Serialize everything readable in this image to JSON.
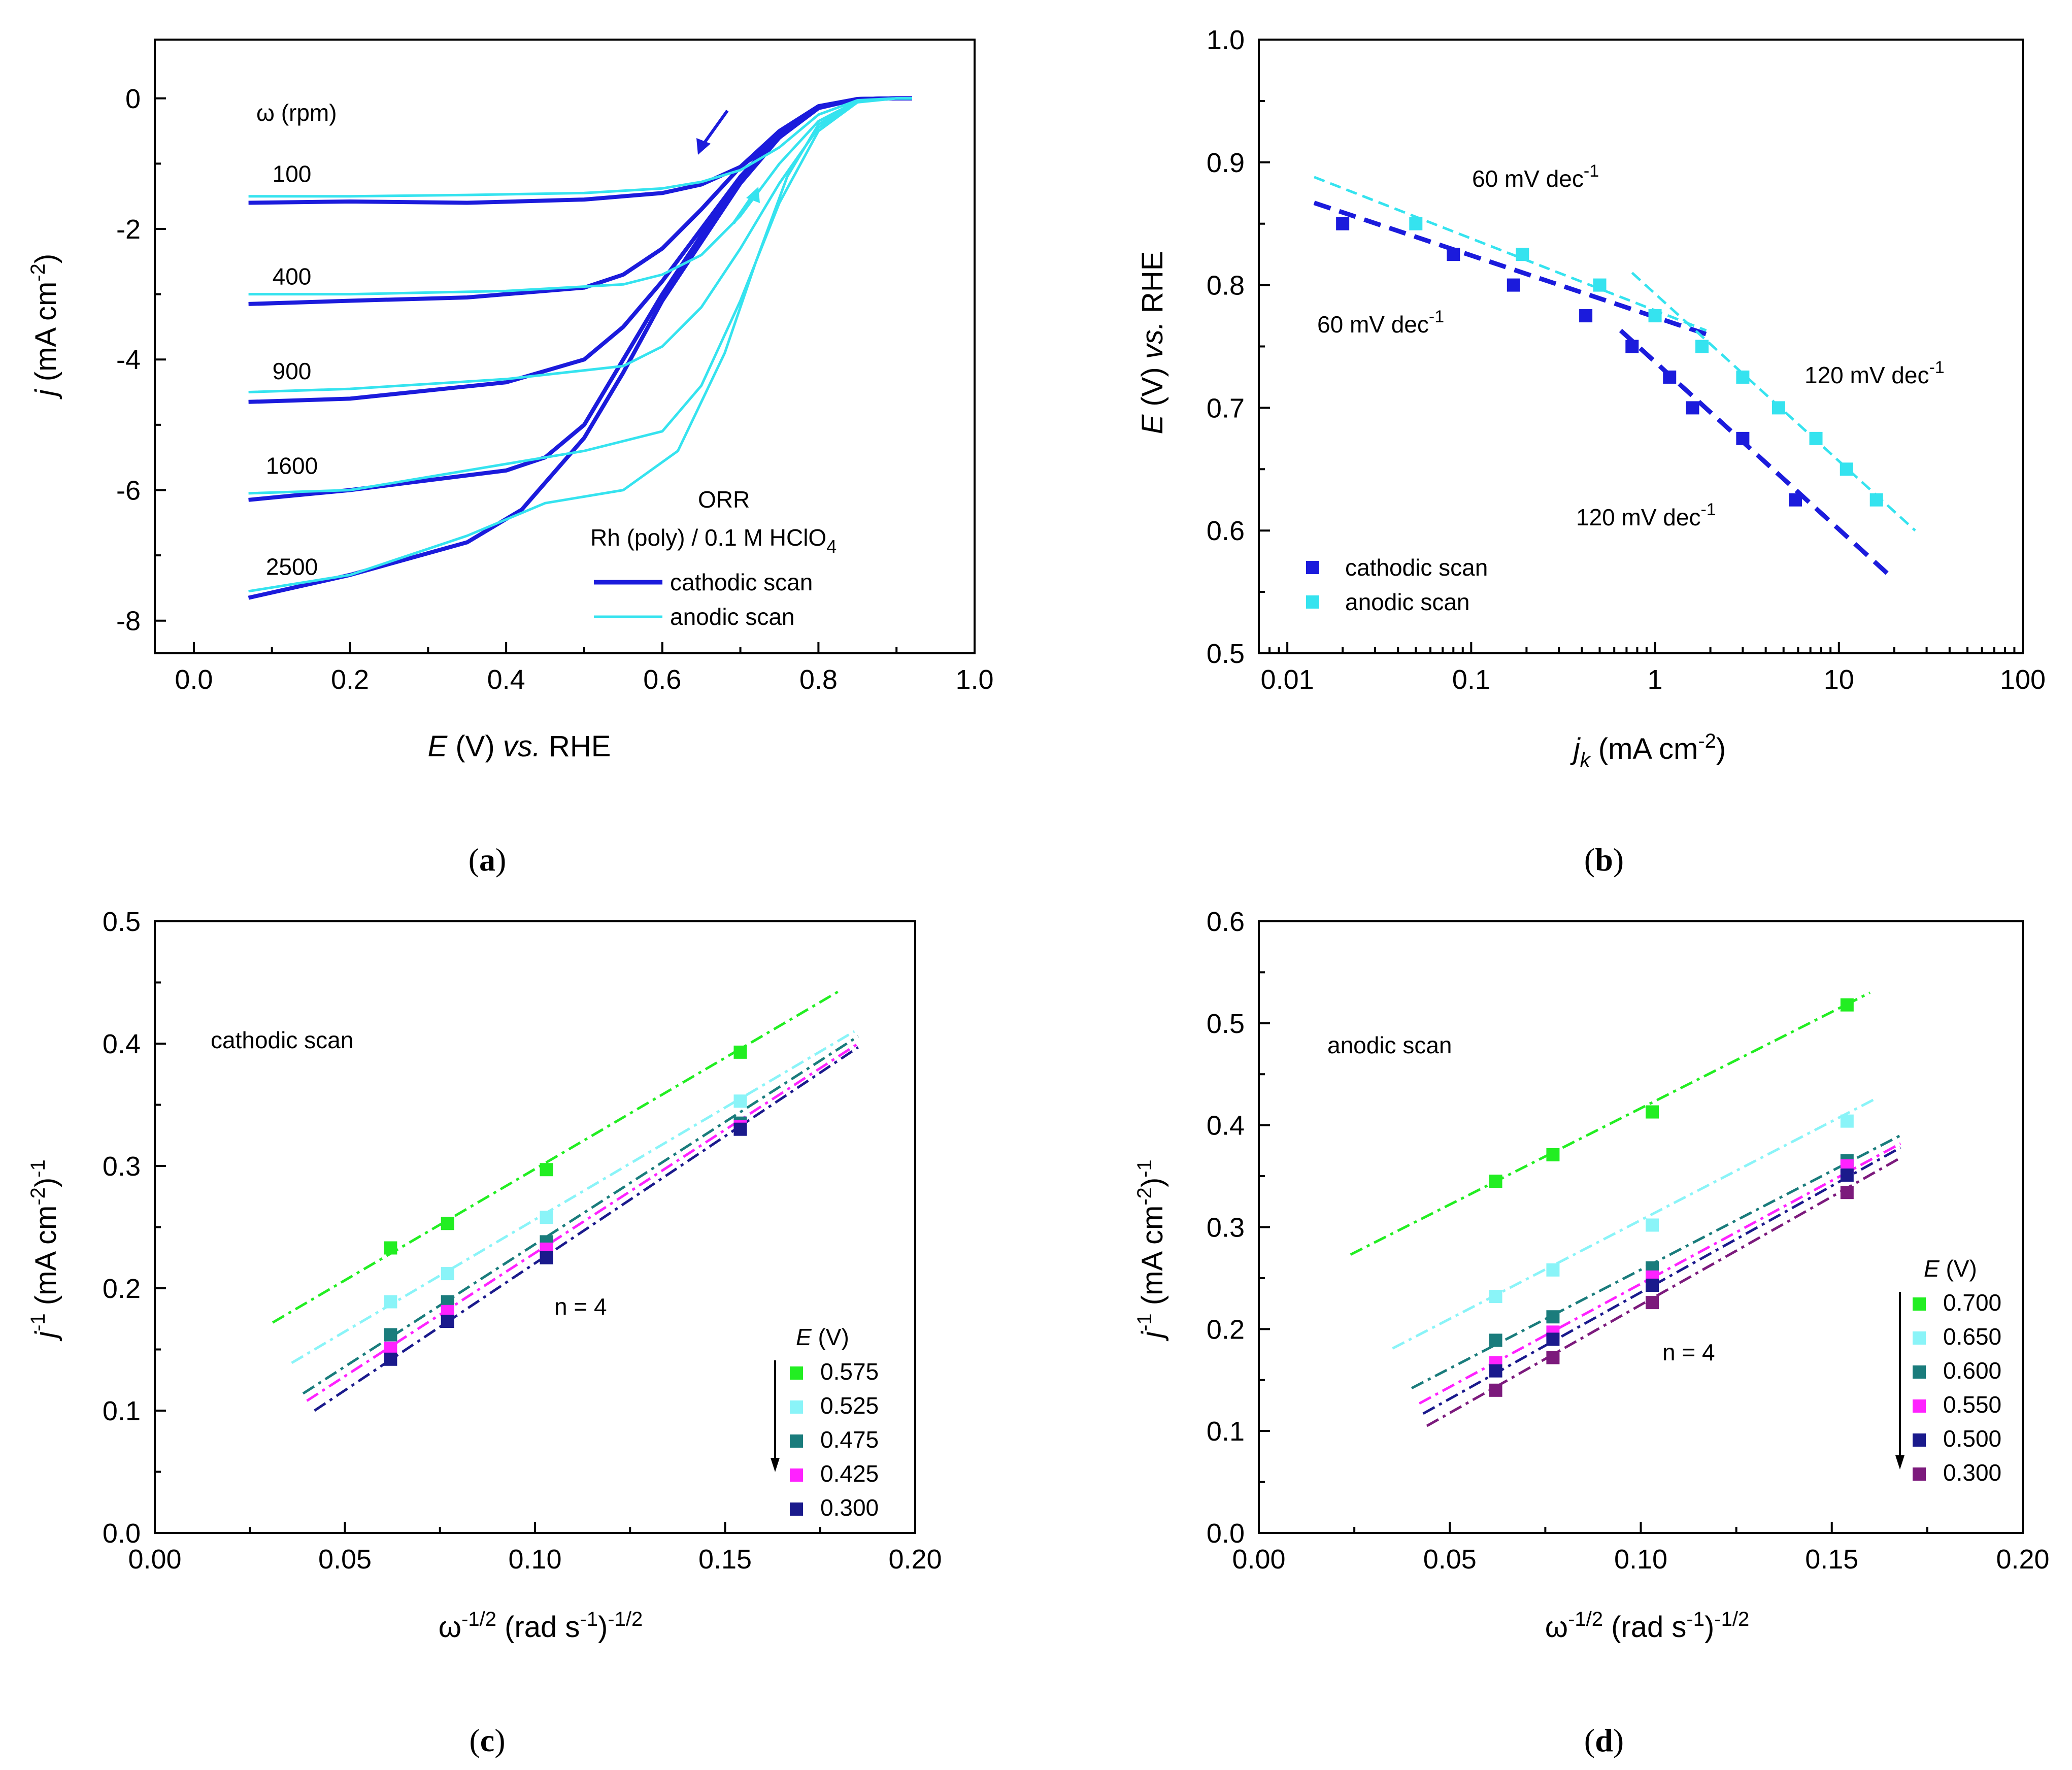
{
  "colors": {
    "cathodic": "#1b1bdc",
    "anodic": "#35e3ef",
    "e0575": "#22ee22",
    "e0525": "#8af4f8",
    "e0475": "#1a7c7c",
    "e0425": "#ff22ff",
    "e0300_c": "#1a1a8c",
    "e0700": "#22ee22",
    "e0650": "#8af4f8",
    "e0600": "#1a7c7c",
    "e0550": "#ff22ff",
    "e0500": "#1a1a8c",
    "e0300_a": "#7c1a7c"
  },
  "chart_data": [
    {
      "id": "a",
      "type": "line",
      "caption": "a",
      "xlabel": "E (V) vs. RHE",
      "ylabel": "j (mA cm-2)",
      "xlim": [
        -0.05,
        1.0
      ],
      "ylim": [
        -8.5,
        0.9
      ],
      "xticks": [
        "0.0",
        "0.2",
        "0.4",
        "0.6",
        "0.8",
        "1.0"
      ],
      "yticks": [
        "-8",
        "-6",
        "-4",
        "-2",
        "0"
      ],
      "annotations": {
        "omega_header": "ω (rpm)",
        "rpm_labels": [
          "100",
          "400",
          "900",
          "1600",
          "2500"
        ],
        "orr_title": "ORR",
        "electrolyte": "Rh (poly) / 0.1 M HClO",
        "electrolyte_sub": "4"
      },
      "legend": [
        "cathodic scan",
        "anodic scan"
      ],
      "rpm": [
        100,
        400,
        900,
        1600,
        2500
      ],
      "cathodic_limiting": [
        -1.6,
        -3.15,
        -4.65,
        -6.15,
        -7.65
      ],
      "anodic_limiting": [
        -1.5,
        -3.0,
        -4.5,
        -6.05,
        -7.55
      ],
      "series": [
        {
          "name": "cathodic scan",
          "rpm": 100,
          "x": [
            0.07,
            0.2,
            0.35,
            0.5,
            0.6,
            0.65,
            0.7,
            0.75,
            0.8,
            0.85,
            0.9,
            0.92
          ],
          "y": [
            -1.6,
            -1.58,
            -1.6,
            -1.55,
            -1.45,
            -1.32,
            -1.05,
            -0.6,
            -0.15,
            -0.01,
            0,
            0
          ]
        },
        {
          "name": "cathodic scan",
          "rpm": 400,
          "x": [
            0.07,
            0.2,
            0.35,
            0.5,
            0.55,
            0.6,
            0.65,
            0.7,
            0.75,
            0.8,
            0.85,
            0.9,
            0.92
          ],
          "y": [
            -3.15,
            -3.1,
            -3.05,
            -2.9,
            -2.7,
            -2.3,
            -1.7,
            -1.05,
            -0.5,
            -0.12,
            -0.01,
            0,
            0
          ]
        },
        {
          "name": "cathodic scan",
          "rpm": 900,
          "x": [
            0.07,
            0.2,
            0.4,
            0.5,
            0.55,
            0.6,
            0.65,
            0.7,
            0.75,
            0.8,
            0.85,
            0.9,
            0.92
          ],
          "y": [
            -4.65,
            -4.6,
            -4.35,
            -4.0,
            -3.5,
            -2.8,
            -2.0,
            -1.2,
            -0.55,
            -0.13,
            -0.01,
            0,
            0
          ]
        },
        {
          "name": "cathodic scan",
          "rpm": 1600,
          "x": [
            0.07,
            0.2,
            0.4,
            0.45,
            0.5,
            0.55,
            0.6,
            0.65,
            0.7,
            0.75,
            0.8,
            0.85,
            0.9,
            0.92
          ],
          "y": [
            -6.15,
            -6.0,
            -5.7,
            -5.5,
            -5.0,
            -4.0,
            -3.0,
            -2.1,
            -1.25,
            -0.58,
            -0.13,
            -0.01,
            0,
            0
          ]
        },
        {
          "name": "cathodic scan",
          "rpm": 2500,
          "x": [
            0.07,
            0.2,
            0.35,
            0.42,
            0.5,
            0.55,
            0.6,
            0.65,
            0.7,
            0.75,
            0.8,
            0.85,
            0.9,
            0.92
          ],
          "y": [
            -7.65,
            -7.3,
            -6.8,
            -6.3,
            -5.2,
            -4.2,
            -3.1,
            -2.2,
            -1.3,
            -0.6,
            -0.14,
            -0.01,
            0,
            0
          ]
        },
        {
          "name": "anodic scan",
          "rpm": 100,
          "x": [
            0.07,
            0.2,
            0.35,
            0.5,
            0.6,
            0.65,
            0.7,
            0.75,
            0.8,
            0.85,
            0.9,
            0.92
          ],
          "y": [
            -1.5,
            -1.5,
            -1.48,
            -1.45,
            -1.38,
            -1.28,
            -1.1,
            -0.75,
            -0.25,
            -0.03,
            0,
            0
          ]
        },
        {
          "name": "anodic scan",
          "rpm": 400,
          "x": [
            0.07,
            0.2,
            0.4,
            0.55,
            0.6,
            0.65,
            0.7,
            0.75,
            0.8,
            0.85,
            0.9,
            0.92
          ],
          "y": [
            -3.0,
            -3.0,
            -2.95,
            -2.85,
            -2.7,
            -2.4,
            -1.8,
            -1.0,
            -0.35,
            -0.04,
            0,
            0
          ]
        },
        {
          "name": "anodic scan",
          "rpm": 900,
          "x": [
            0.07,
            0.2,
            0.4,
            0.55,
            0.6,
            0.65,
            0.7,
            0.75,
            0.8,
            0.85,
            0.9,
            0.92
          ],
          "y": [
            -4.5,
            -4.45,
            -4.3,
            -4.1,
            -3.8,
            -3.2,
            -2.3,
            -1.3,
            -0.45,
            -0.05,
            0,
            0
          ]
        },
        {
          "name": "anodic scan",
          "rpm": 1600,
          "x": [
            0.07,
            0.2,
            0.4,
            0.5,
            0.6,
            0.65,
            0.7,
            0.75,
            0.8,
            0.85,
            0.9,
            0.92
          ],
          "y": [
            -6.05,
            -6.0,
            -5.6,
            -5.4,
            -5.1,
            -4.4,
            -3.1,
            -1.6,
            -0.5,
            -0.06,
            0,
            0
          ]
        },
        {
          "name": "anodic scan",
          "rpm": 2500,
          "x": [
            0.07,
            0.2,
            0.35,
            0.45,
            0.55,
            0.62,
            0.68,
            0.72,
            0.76,
            0.8,
            0.85,
            0.9,
            0.92
          ],
          "y": [
            -7.55,
            -7.3,
            -6.7,
            -6.2,
            -6.0,
            -5.4,
            -3.9,
            -2.5,
            -1.2,
            -0.4,
            -0.05,
            0,
            0
          ]
        }
      ]
    },
    {
      "id": "b",
      "type": "scatter",
      "caption": "b",
      "xlabel": "jk (mA cm-2)",
      "ylabel": "E (V) vs. RHE",
      "xscale": "log",
      "xlim": [
        0.007,
        100
      ],
      "ylim": [
        0.5,
        1.0
      ],
      "xticks": [
        "0.01",
        "0.1",
        "1",
        "10",
        "100"
      ],
      "yticks": [
        "0.5",
        "0.6",
        "0.7",
        "0.8",
        "0.9",
        "1.0"
      ],
      "legend": [
        "cathodic scan",
        "anodic scan"
      ],
      "annotations": [
        "60 mV dec-1",
        "60 mV dec-1",
        "120 mV dec-1",
        "120 mV dec-1"
      ],
      "series": [
        {
          "name": "cathodic scan",
          "x": [
            0.02,
            0.08,
            0.17,
            0.42,
            0.75,
            1.2,
            1.6,
            3.0,
            5.8
          ],
          "y": [
            0.85,
            0.825,
            0.8,
            0.775,
            0.75,
            0.725,
            0.7,
            0.675,
            0.625
          ]
        },
        {
          "name": "anodic scan",
          "x": [
            0.05,
            0.19,
            0.5,
            1.0,
            1.8,
            3.0,
            4.7,
            7.5,
            11,
            16
          ],
          "y": [
            0.85,
            0.825,
            0.8,
            0.775,
            0.75,
            0.725,
            0.7,
            0.675,
            0.65,
            0.625
          ]
        }
      ],
      "fits": [
        {
          "scan": "cathodic",
          "x": [
            0.014,
            1.9
          ],
          "y": [
            0.867,
            0.76
          ]
        },
        {
          "scan": "cathodic",
          "x": [
            0.65,
            19
          ],
          "y": [
            0.763,
            0.563
          ]
        },
        {
          "scan": "anodic",
          "x": [
            0.014,
            1.9
          ],
          "y": [
            0.888,
            0.763
          ]
        },
        {
          "scan": "anodic",
          "x": [
            0.75,
            26
          ],
          "y": [
            0.81,
            0.6
          ]
        }
      ]
    },
    {
      "id": "c",
      "type": "scatter",
      "caption": "c",
      "xlabel": "ω-1/2 (rad s-1)-1/2",
      "ylabel": "j-1 (mA cm-2)-1",
      "xlim": [
        0.0,
        0.2
      ],
      "ylim": [
        0.0,
        0.5
      ],
      "xticks": [
        "0.00",
        "0.05",
        "0.10",
        "0.15",
        "0.20"
      ],
      "yticks": [
        "0.0",
        "0.1",
        "0.2",
        "0.3",
        "0.4",
        "0.5"
      ],
      "scan_label": "cathodic scan",
      "n_label": "n = 4",
      "legend_title": "E (V)",
      "x": [
        0.062,
        0.077,
        0.103,
        0.154
      ],
      "series": [
        {
          "name": "0.575",
          "y": [
            0.233,
            0.253,
            0.297,
            0.393
          ],
          "fit": {
            "x": [
              0.031,
              0.18
            ],
            "y": [
              0.172,
              0.443
            ]
          }
        },
        {
          "name": "0.525",
          "y": [
            0.189,
            0.212,
            0.258,
            0.353
          ],
          "fit": {
            "x": [
              0.036,
              0.184
            ],
            "y": [
              0.139,
              0.41
            ]
          }
        },
        {
          "name": "0.475",
          "y": [
            0.162,
            0.189,
            0.238,
            0.335
          ],
          "fit": {
            "x": [
              0.039,
              0.185
            ],
            "y": [
              0.114,
              0.406
            ]
          }
        },
        {
          "name": "0.425",
          "y": [
            0.151,
            0.181,
            0.232,
            0.332
          ],
          "fit": {
            "x": [
              0.04,
              0.185
            ],
            "y": [
              0.108,
              0.4
            ]
          }
        },
        {
          "name": "0.300",
          "y": [
            0.142,
            0.173,
            0.225,
            0.33
          ],
          "fit": {
            "x": [
              0.042,
              0.185
            ],
            "y": [
              0.1,
              0.397
            ]
          }
        }
      ]
    },
    {
      "id": "d",
      "type": "scatter",
      "caption": "d",
      "xlabel": "ω-1/2 (rad s-1)-1/2",
      "ylabel": "j-1 (mA cm-2)-1",
      "xlim": [
        0.0,
        0.2
      ],
      "ylim": [
        0.0,
        0.6
      ],
      "xticks": [
        "0.00",
        "0.05",
        "0.10",
        "0.15",
        "0.20"
      ],
      "yticks": [
        "0.0",
        "0.1",
        "0.2",
        "0.3",
        "0.4",
        "0.5",
        "0.6"
      ],
      "scan_label": "anodic scan",
      "n_label": "n = 4",
      "legend_title": "E (V)",
      "x": [
        0.062,
        0.077,
        0.103,
        0.154
      ],
      "series": [
        {
          "name": "0.700",
          "y": [
            0.345,
            0.371,
            0.413,
            0.518
          ],
          "fit": {
            "x": [
              0.024,
              0.16
            ],
            "y": [
              0.273,
              0.53
            ]
          }
        },
        {
          "name": "0.650",
          "y": [
            0.232,
            0.258,
            0.302,
            0.404
          ],
          "fit": {
            "x": [
              0.035,
              0.162
            ],
            "y": [
              0.181,
              0.427
            ]
          }
        },
        {
          "name": "0.600",
          "y": [
            0.189,
            0.212,
            0.26,
            0.365
          ],
          "fit": {
            "x": [
              0.04,
              0.168
            ],
            "y": [
              0.142,
              0.39
            ]
          }
        },
        {
          "name": "0.550",
          "y": [
            0.167,
            0.197,
            0.251,
            0.36
          ],
          "fit": {
            "x": [
              0.042,
              0.168
            ],
            "y": [
              0.127,
              0.382
            ]
          }
        },
        {
          "name": "0.500",
          "y": [
            0.159,
            0.19,
            0.243,
            0.351
          ],
          "fit": {
            "x": [
              0.043,
              0.168
            ],
            "y": [
              0.117,
              0.378
            ]
          }
        },
        {
          "name": "0.300",
          "y": [
            0.14,
            0.172,
            0.226,
            0.334
          ],
          "fit": {
            "x": [
              0.044,
              0.168
            ],
            "y": [
              0.105,
              0.368
            ]
          }
        }
      ]
    }
  ]
}
